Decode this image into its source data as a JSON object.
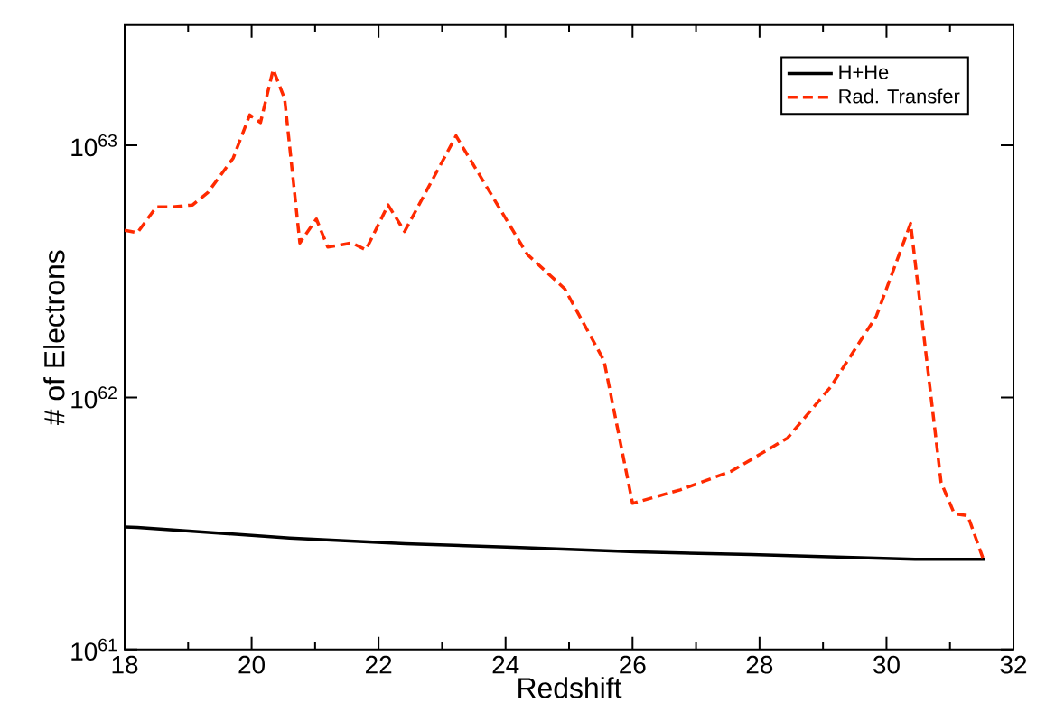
{
  "chart_data": {
    "type": "line",
    "xlabel": "Redshift",
    "ylabel": "# of Electrons",
    "log": "y",
    "legend": "top right",
    "xlim": [
      18,
      32
    ],
    "xticks": [
      18,
      20,
      22,
      24,
      26,
      28,
      30,
      32
    ],
    "ylim": [
      1e+61,
      3e+63
    ],
    "yticks": [
      {
        "value": 1e+61,
        "label": "10$^{61}$"
      },
      {
        "value": 1e+62,
        "label": "10$^{62}$"
      },
      {
        "value": 1e+63,
        "label": "10$^{63}$"
      }
    ],
    "series": [
      {
        "name": "H+He",
        "color": "#000000",
        "line_style": "solid",
        "x": [
          18,
          18.2,
          20.6,
          22.42,
          24.23,
          26.05,
          27.87,
          30.45,
          31.55
        ],
        "values": [
          3.06e+61,
          3.05e+61,
          2.77e+61,
          2.63e+61,
          2.54e+61,
          2.44e+61,
          2.38e+61,
          2.28e+61,
          2.28e+61
        ]
      },
      {
        "name": "Rad. Transfer",
        "color": "#ff2a00",
        "line_style": "dashed",
        "x": [
          18,
          18.2,
          18.5,
          18.74,
          19.07,
          19.31,
          19.71,
          19.97,
          20.14,
          20.34,
          20.52,
          20.76,
          21.02,
          21.2,
          21.58,
          21.8,
          22.15,
          22.41,
          23.22,
          24.34,
          24.93,
          25.55,
          26.0,
          26.75,
          27.56,
          28.44,
          29.12,
          29.84,
          30.38,
          30.86,
          31.07,
          31.28,
          31.52
        ],
        "values": [
          4.6e+62,
          4.5e+62,
          5.7e+62,
          5.7e+62,
          5.8e+62,
          6.5e+62,
          8.9e+62,
          1.32e+63,
          1.23e+63,
          2e+63,
          1.53e+63,
          4.1e+62,
          5.1e+62,
          3.95e+62,
          4.1e+62,
          3.85e+62,
          5.8e+62,
          4.55e+62,
          1.09e+63,
          3.7e+62,
          2.7e+62,
          1.4e+62,
          3.8e+61,
          4.3e+61,
          5.1e+61,
          6.9e+61,
          1.1e+62,
          2.1e+62,
          4.9e+62,
          4.6e+61,
          3.45e+61,
          3.4e+61,
          2.3e+61
        ]
      }
    ]
  }
}
